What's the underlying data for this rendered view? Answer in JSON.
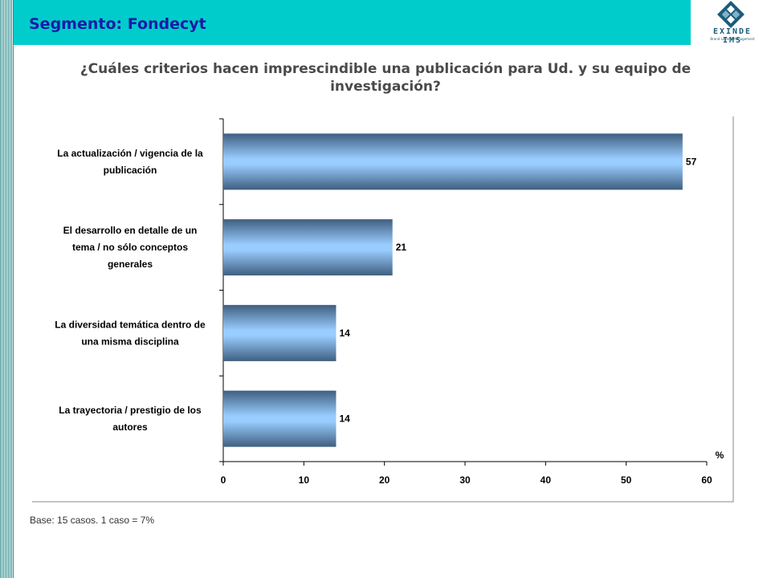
{
  "header": {
    "title": "Segmento: Fondecyt",
    "logo_text": "EXINDE IMS",
    "logo_tagline": "Brand Loyalty Management"
  },
  "footer": {
    "base_note": "Base: 15 casos.  1 caso = 7%"
  },
  "colors": {
    "header_bg": "#00cccc",
    "title": "#1a1aa6",
    "bar_light": "#99ccff",
    "bar_dark": "#3f5f7f"
  },
  "chart_data": {
    "type": "bar",
    "orientation": "horizontal",
    "title": "¿Cuáles criterios hacen imprescindible una publicación para Ud. y su equipo de investigación?",
    "categories": [
      [
        "La actualización / vigencia de la",
        "publicación"
      ],
      [
        "El desarrollo en detalle de un",
        "tema / no sólo conceptos",
        "generales"
      ],
      [
        "La diversidad temática dentro de",
        "una misma disciplina"
      ],
      [
        "La trayectoria / prestigio de los",
        "autores"
      ]
    ],
    "values": [
      57,
      21,
      14,
      14
    ],
    "data_labels": [
      "57",
      "21",
      "14",
      "14"
    ],
    "xlim": [
      0,
      60
    ],
    "xticks": [
      0,
      10,
      20,
      30,
      40,
      50,
      60
    ],
    "unit_label": "%",
    "grid": false
  }
}
